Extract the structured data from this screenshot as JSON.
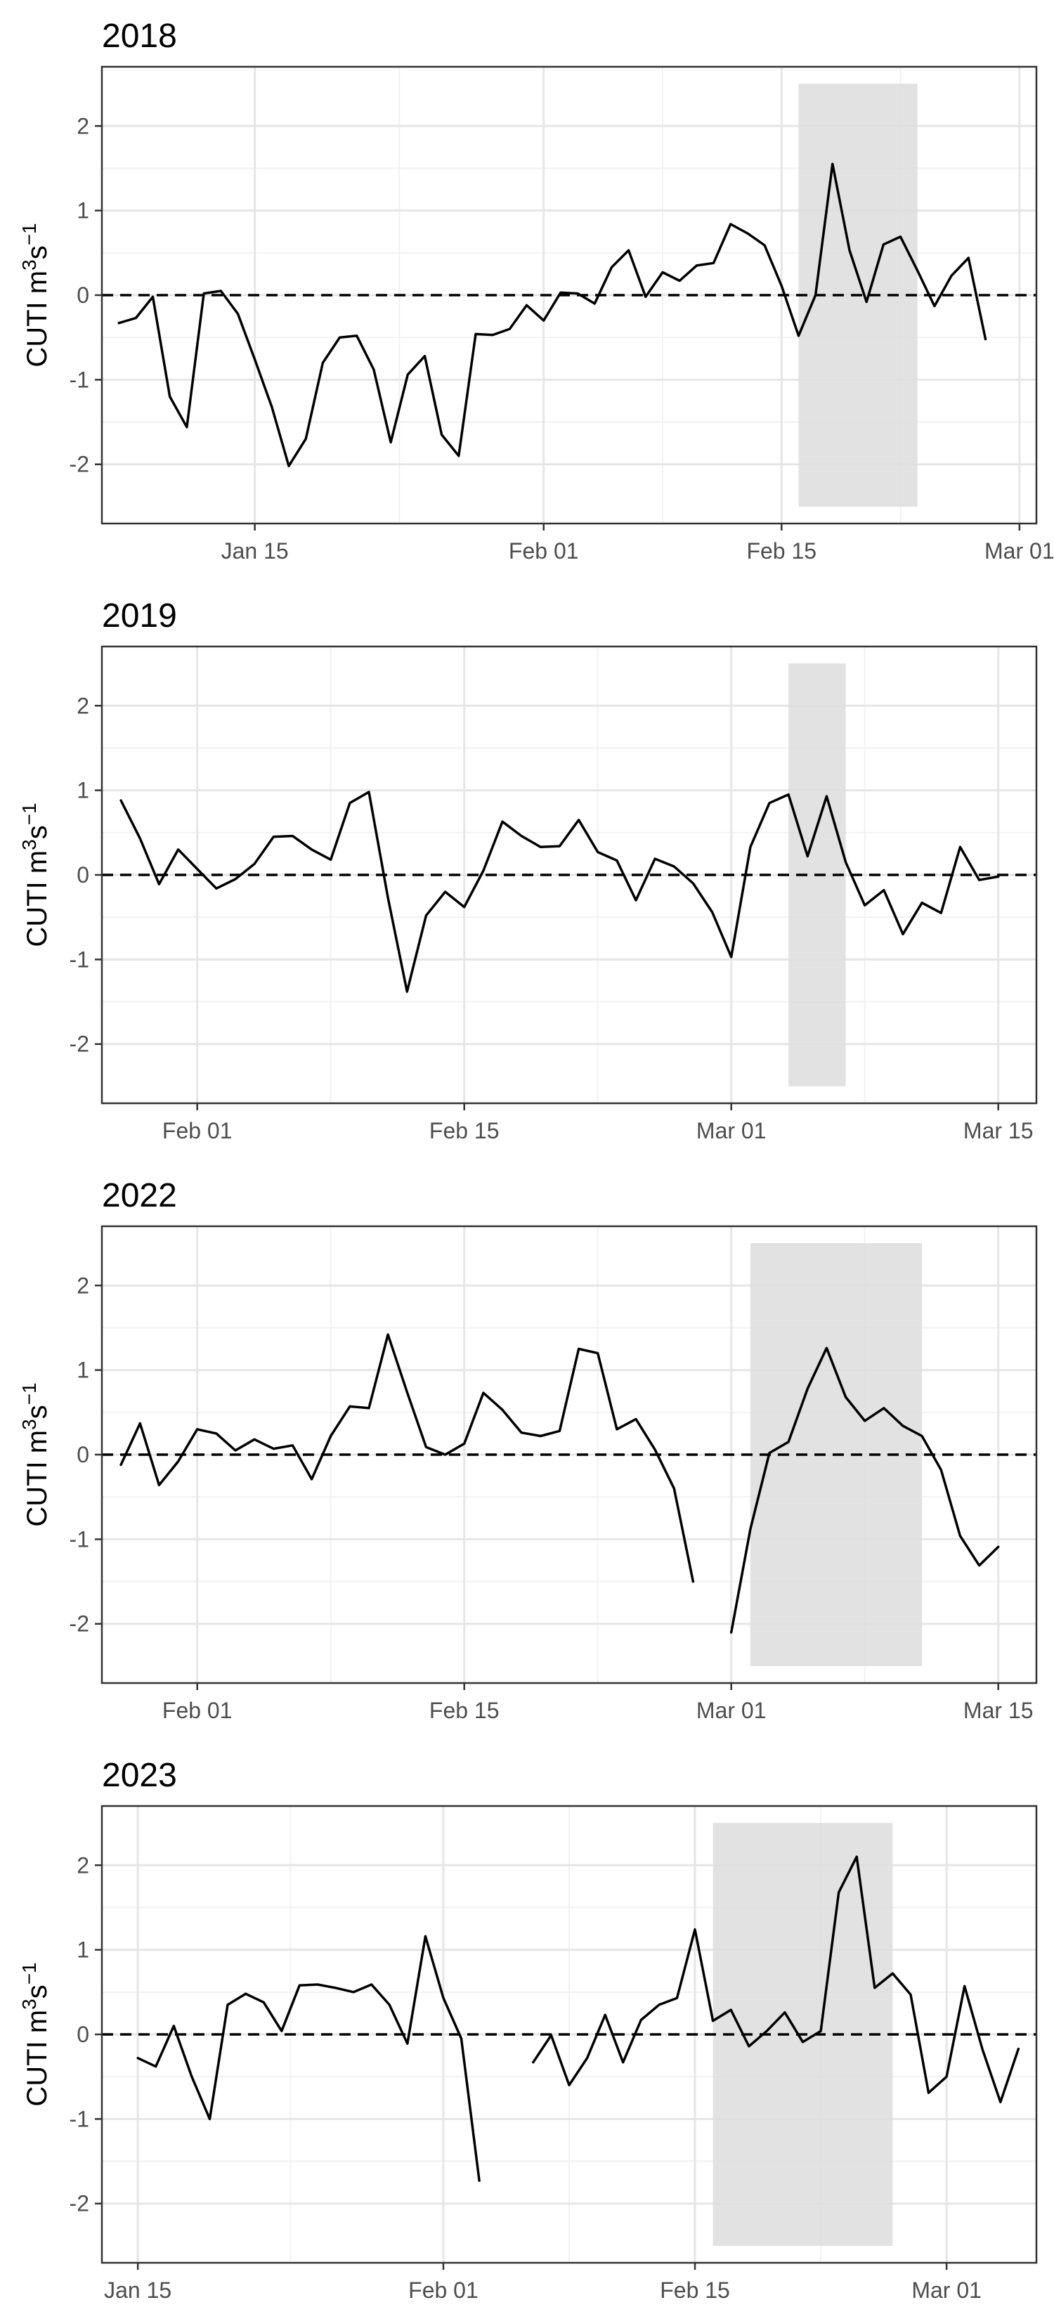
{
  "ylabel": "CUTI m³s⁻¹",
  "ylabel_parts": {
    "base": "CUTI m",
    "sup1": "3",
    "mid": "s",
    "sup2": "−1"
  },
  "y_ticks": [
    "2",
    "1",
    "0",
    "-1",
    "-2"
  ],
  "colors": {
    "line": "#000000",
    "shade": "#dddddd",
    "grid_major": "#e6e6e6",
    "grid_minor": "#f2f2f2",
    "zero_line": "#000000"
  },
  "chart_data": [
    {
      "type": "line",
      "title": "2018",
      "xlabel": "",
      "ylabel": "CUTI m³s⁻¹",
      "x_start": "2018-01-07",
      "xlim": [
        "2018-01-06",
        "2018-03-02"
      ],
      "ylim": [
        -2.7,
        2.7
      ],
      "x_ticks": [
        {
          "date": "2018-01-15",
          "label": "Jan 15"
        },
        {
          "date": "2018-02-01",
          "label": "Feb 01"
        },
        {
          "date": "2018-02-15",
          "label": "Feb 15"
        },
        {
          "date": "2018-03-01",
          "label": "Mar 01"
        }
      ],
      "shaded_period": [
        "2018-02-16",
        "2018-02-23"
      ],
      "reference_line": 0,
      "grid": true,
      "values": [
        -0.33,
        -0.27,
        -0.02,
        -1.2,
        -1.56,
        0.02,
        0.05,
        -0.22,
        -0.76,
        -1.32,
        -2.02,
        -1.7,
        -0.8,
        -0.5,
        -0.48,
        -0.88,
        -1.74,
        -0.94,
        -0.72,
        -1.65,
        -1.9,
        -0.46,
        -0.47,
        -0.4,
        -0.12,
        -0.3,
        0.03,
        0.02,
        -0.1,
        0.33,
        0.53,
        -0.02,
        0.27,
        0.17,
        0.35,
        0.38,
        0.84,
        0.73,
        0.59,
        0.11,
        -0.48,
        0.0,
        1.55,
        0.53,
        -0.08,
        0.6,
        0.69,
        0.29,
        -0.13,
        0.23,
        0.44,
        -0.52
      ]
    },
    {
      "type": "line",
      "title": "2019",
      "xlabel": "",
      "ylabel": "CUTI m³s⁻¹",
      "x_start": "2019-01-28",
      "xlim": [
        "2019-01-27",
        "2019-03-17"
      ],
      "ylim": [
        -2.7,
        2.7
      ],
      "x_ticks": [
        {
          "date": "2019-02-01",
          "label": "Feb 01"
        },
        {
          "date": "2019-02-15",
          "label": "Feb 15"
        },
        {
          "date": "2019-03-01",
          "label": "Mar 01"
        },
        {
          "date": "2019-03-15",
          "label": "Mar 15"
        }
      ],
      "shaded_period": [
        "2019-03-04",
        "2019-03-07"
      ],
      "reference_line": 0,
      "grid": true,
      "values": [
        0.88,
        0.43,
        -0.11,
        0.3,
        0.07,
        -0.16,
        -0.05,
        0.13,
        0.45,
        0.46,
        0.3,
        0.18,
        0.85,
        0.98,
        -0.27,
        -1.38,
        -0.48,
        -0.2,
        -0.38,
        0.05,
        0.63,
        0.46,
        0.33,
        0.34,
        0.65,
        0.27,
        0.17,
        -0.3,
        0.19,
        0.1,
        -0.1,
        -0.44,
        -0.97,
        0.33,
        0.85,
        0.95,
        0.22,
        0.93,
        0.15,
        -0.36,
        -0.18,
        -0.7,
        -0.33,
        -0.45,
        0.33,
        -0.06,
        -0.02
      ]
    },
    {
      "type": "line",
      "title": "2022",
      "xlabel": "",
      "ylabel": "CUTI m³s⁻¹",
      "x_start": "2022-01-28",
      "xlim": [
        "2022-01-27",
        "2022-03-17"
      ],
      "ylim": [
        -2.7,
        2.7
      ],
      "x_ticks": [
        {
          "date": "2022-02-01",
          "label": "Feb 01"
        },
        {
          "date": "2022-02-15",
          "label": "Feb 15"
        },
        {
          "date": "2022-03-01",
          "label": "Mar 01"
        },
        {
          "date": "2022-03-15",
          "label": "Mar 15"
        }
      ],
      "shaded_period": [
        "2022-03-02",
        "2022-03-11"
      ],
      "reference_line": 0,
      "grid": true,
      "values": [
        -0.12,
        0.37,
        -0.36,
        -0.08,
        0.3,
        0.25,
        0.05,
        0.18,
        0.07,
        0.11,
        -0.29,
        0.22,
        0.57,
        0.55,
        1.42,
        0.74,
        0.09,
        0.0,
        0.13,
        0.73,
        0.53,
        0.26,
        0.22,
        0.28,
        1.25,
        1.2,
        0.3,
        0.42,
        0.06,
        -0.4,
        -1.5,
        null,
        -2.1,
        -0.88,
        0.02,
        0.15,
        0.78,
        1.26,
        0.68,
        0.4,
        0.55,
        0.34,
        0.22,
        -0.18,
        -0.96,
        -1.31,
        -1.09
      ]
    },
    {
      "type": "line",
      "title": "2023",
      "xlabel": "",
      "ylabel": "CUTI m³s⁻¹",
      "x_start": "2023-01-15",
      "xlim": [
        "2023-01-13",
        "2023-03-06"
      ],
      "ylim": [
        -2.7,
        2.7
      ],
      "x_ticks": [
        {
          "date": "2023-01-15",
          "label": "Jan 15"
        },
        {
          "date": "2023-02-01",
          "label": "Feb 01"
        },
        {
          "date": "2023-02-15",
          "label": "Feb 15"
        },
        {
          "date": "2023-03-01",
          "label": "Mar 01"
        }
      ],
      "shaded_period": [
        "2023-02-16",
        "2023-02-26"
      ],
      "reference_line": 0,
      "grid": true,
      "values": [
        -0.28,
        -0.38,
        0.1,
        -0.5,
        -1.0,
        0.35,
        0.48,
        0.38,
        0.04,
        0.58,
        0.59,
        0.55,
        0.5,
        0.59,
        0.35,
        -0.11,
        1.16,
        0.43,
        -0.05,
        -1.73,
        null,
        null,
        -0.33,
        -0.01,
        -0.6,
        -0.28,
        0.23,
        -0.33,
        0.17,
        0.35,
        0.43,
        1.24,
        0.16,
        0.29,
        -0.14,
        0.04,
        0.26,
        -0.09,
        0.04,
        1.68,
        2.1,
        0.55,
        0.72,
        0.47,
        -0.69,
        -0.5,
        0.57,
        -0.18,
        -0.8,
        -0.17
      ]
    }
  ]
}
